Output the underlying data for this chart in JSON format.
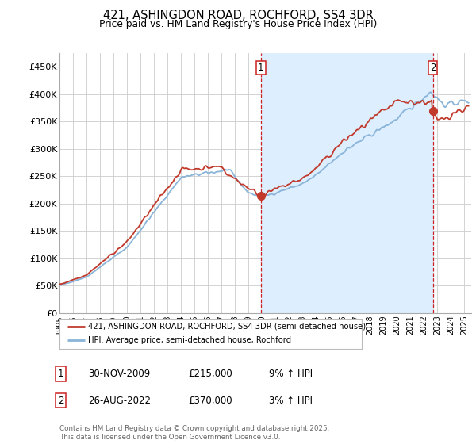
{
  "title": "421, ASHINGDON ROAD, ROCHFORD, SS4 3DR",
  "subtitle": "Price paid vs. HM Land Registry's House Price Index (HPI)",
  "ylabel_ticks": [
    "£0",
    "£50K",
    "£100K",
    "£150K",
    "£200K",
    "£250K",
    "£300K",
    "£350K",
    "£400K",
    "£450K"
  ],
  "ytick_values": [
    0,
    50000,
    100000,
    150000,
    200000,
    250000,
    300000,
    350000,
    400000,
    450000
  ],
  "ylim": [
    0,
    475000
  ],
  "xlim_start": 1995.0,
  "xlim_end": 2025.5,
  "sale1": {
    "date": 2009.92,
    "price": 215000,
    "label": "1",
    "date_str": "30-NOV-2009",
    "pct": "9%"
  },
  "sale2": {
    "date": 2022.65,
    "price": 370000,
    "label": "2",
    "date_str": "26-AUG-2022",
    "pct": "3%"
  },
  "legend_line1": "421, ASHINGDON ROAD, ROCHFORD, SS4 3DR (semi-detached house)",
  "legend_line2": "HPI: Average price, semi-detached house, Rochford",
  "table_row1": [
    "1",
    "30-NOV-2009",
    "£215,000",
    "9% ↑ HPI"
  ],
  "table_row2": [
    "2",
    "26-AUG-2022",
    "£370,000",
    "3% ↑ HPI"
  ],
  "footnote": "Contains HM Land Registry data © Crown copyright and database right 2025.\nThis data is licensed under the Open Government Licence v3.0.",
  "hpi_color": "#8ab4d8",
  "price_color": "#c0392b",
  "vline_color": "#cc2222",
  "shade_color": "#ddeeff",
  "background_color": "#ffffff",
  "grid_color": "#cccccc"
}
